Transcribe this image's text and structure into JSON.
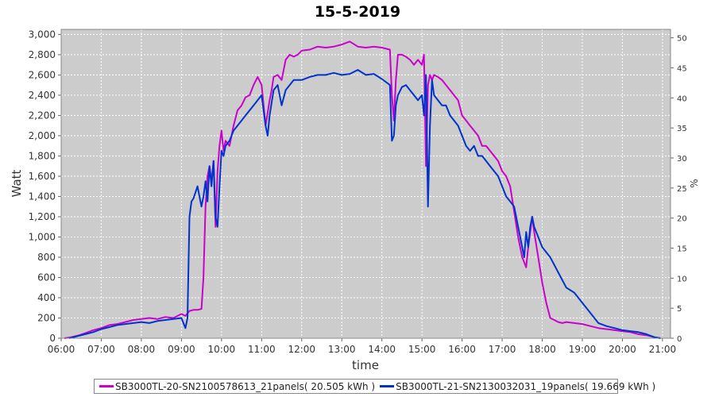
{
  "chart_data": {
    "type": "line",
    "title": "15-5-2019",
    "xlabel": "time",
    "ylabel": "Watt",
    "y2label": "%",
    "xlim": [
      6.0,
      21.2
    ],
    "ylim": [
      0,
      3050
    ],
    "y2lim": [
      0,
      51.4
    ],
    "x_ticks": [
      "06:00",
      "07:00",
      "08:00",
      "09:00",
      "10:00",
      "11:00",
      "12:00",
      "13:00",
      "14:00",
      "15:00",
      "16:00",
      "17:00",
      "18:00",
      "19:00",
      "20:00",
      "21:00"
    ],
    "y_ticks": [
      "0",
      "200",
      "400",
      "600",
      "800",
      "1,000",
      "1,200",
      "1,400",
      "1,600",
      "1,800",
      "2,000",
      "2,200",
      "2,400",
      "2,600",
      "2,800",
      "3,000"
    ],
    "y2_ticks": [
      "0",
      "5",
      "10",
      "15",
      "20",
      "25",
      "30",
      "35",
      "40",
      "45",
      "50"
    ],
    "grid": true,
    "legend_position": "bottom",
    "series": [
      {
        "name": "SB3000TL-20-SN2100578613_21panels( 20.505 kWh )",
        "color": "#cc00cc",
        "x": [
          6.08,
          6.25,
          6.45,
          6.6,
          6.8,
          7.0,
          7.2,
          7.4,
          7.6,
          7.8,
          8.0,
          8.2,
          8.4,
          8.6,
          8.8,
          9.0,
          9.1,
          9.2,
          9.3,
          9.4,
          9.5,
          9.55,
          9.6,
          9.65,
          9.7,
          9.75,
          9.8,
          9.85,
          9.9,
          9.95,
          10.0,
          10.05,
          10.1,
          10.2,
          10.3,
          10.4,
          10.5,
          10.6,
          10.7,
          10.8,
          10.9,
          11.0,
          11.1,
          11.2,
          11.25,
          11.3,
          11.4,
          11.5,
          11.6,
          11.7,
          11.8,
          11.9,
          12.0,
          12.2,
          12.4,
          12.6,
          12.8,
          13.0,
          13.2,
          13.4,
          13.6,
          13.8,
          14.0,
          14.2,
          14.25,
          14.3,
          14.35,
          14.4,
          14.5,
          14.6,
          14.7,
          14.8,
          14.9,
          15.0,
          15.05,
          15.1,
          15.15,
          15.2,
          15.25,
          15.3,
          15.4,
          15.5,
          15.6,
          15.7,
          15.8,
          15.9,
          16.0,
          16.1,
          16.2,
          16.3,
          16.4,
          16.5,
          16.6,
          16.7,
          16.8,
          16.9,
          17.0,
          17.1,
          17.2,
          17.3,
          17.4,
          17.5,
          17.55,
          17.6,
          17.65,
          17.7,
          17.75,
          17.8,
          17.9,
          18.0,
          18.1,
          18.2,
          18.3,
          18.4,
          18.5,
          18.6,
          18.8,
          19.0,
          19.2,
          19.4,
          19.6,
          19.8,
          20.0,
          20.2,
          20.4,
          20.6,
          20.8,
          20.95
        ],
        "y": [
          0,
          10,
          30,
          50,
          80,
          100,
          130,
          140,
          160,
          180,
          190,
          200,
          190,
          210,
          200,
          240,
          220,
          270,
          280,
          280,
          290,
          600,
          1300,
          1600,
          1700,
          1550,
          1750,
          1100,
          1650,
          1900,
          2050,
          1850,
          1950,
          1900,
          2100,
          2250,
          2300,
          2380,
          2400,
          2500,
          2580,
          2500,
          2100,
          2350,
          2450,
          2580,
          2600,
          2550,
          2750,
          2800,
          2780,
          2800,
          2840,
          2850,
          2880,
          2870,
          2880,
          2900,
          2930,
          2880,
          2870,
          2880,
          2870,
          2850,
          2400,
          2150,
          2550,
          2800,
          2800,
          2780,
          2750,
          2700,
          2750,
          2700,
          2800,
          1700,
          2500,
          2600,
          2550,
          2600,
          2580,
          2550,
          2500,
          2450,
          2400,
          2350,
          2200,
          2150,
          2100,
          2050,
          2000,
          1900,
          1900,
          1850,
          1800,
          1750,
          1650,
          1600,
          1500,
          1250,
          1000,
          800,
          750,
          700,
          900,
          1050,
          1200,
          1050,
          800,
          550,
          350,
          200,
          180,
          160,
          150,
          160,
          150,
          140,
          120,
          100,
          90,
          80,
          70,
          60,
          40,
          30,
          10,
          0
        ]
      },
      {
        "name": "SB3000TL-21-SN2130032031_19panels( 19.669 kWh )",
        "color": "#0033cc",
        "x": [
          6.2,
          6.4,
          6.6,
          6.8,
          7.0,
          7.2,
          7.4,
          7.6,
          7.8,
          8.0,
          8.2,
          8.4,
          8.6,
          8.8,
          9.0,
          9.1,
          9.15,
          9.2,
          9.25,
          9.3,
          9.4,
          9.5,
          9.55,
          9.6,
          9.65,
          9.7,
          9.75,
          9.8,
          9.85,
          9.9,
          9.95,
          10.0,
          10.05,
          10.1,
          10.2,
          10.3,
          10.4,
          10.5,
          10.6,
          10.7,
          10.8,
          10.9,
          11.0,
          11.1,
          11.15,
          11.2,
          11.3,
          11.4,
          11.5,
          11.6,
          11.8,
          12.0,
          12.2,
          12.4,
          12.6,
          12.8,
          13.0,
          13.2,
          13.4,
          13.6,
          13.8,
          14.0,
          14.2,
          14.25,
          14.3,
          14.35,
          14.4,
          14.5,
          14.6,
          14.7,
          14.8,
          14.9,
          15.0,
          15.05,
          15.1,
          15.15,
          15.2,
          15.25,
          15.3,
          15.4,
          15.5,
          15.6,
          15.7,
          15.8,
          15.9,
          16.0,
          16.1,
          16.2,
          16.3,
          16.4,
          16.5,
          16.6,
          16.7,
          16.8,
          16.9,
          17.0,
          17.1,
          17.2,
          17.3,
          17.4,
          17.5,
          17.55,
          17.6,
          17.65,
          17.7,
          17.75,
          17.8,
          17.9,
          18.0,
          18.2,
          18.4,
          18.6,
          18.8,
          19.0,
          19.2,
          19.4,
          19.6,
          19.8,
          20.0,
          20.2,
          20.4,
          20.6,
          20.8,
          20.95
        ],
        "y": [
          0,
          20,
          40,
          60,
          90,
          110,
          130,
          140,
          150,
          160,
          150,
          170,
          180,
          190,
          200,
          100,
          200,
          1200,
          1350,
          1380,
          1500,
          1300,
          1400,
          1550,
          1350,
          1700,
          1500,
          1750,
          1200,
          1100,
          1500,
          1850,
          1800,
          1900,
          1950,
          2050,
          2100,
          2150,
          2200,
          2250,
          2300,
          2350,
          2400,
          2100,
          2000,
          2200,
          2450,
          2500,
          2300,
          2450,
          2550,
          2550,
          2580,
          2600,
          2600,
          2620,
          2600,
          2610,
          2650,
          2600,
          2610,
          2560,
          2500,
          1950,
          2000,
          2300,
          2400,
          2480,
          2500,
          2450,
          2400,
          2350,
          2400,
          2200,
          2600,
          1300,
          2100,
          2550,
          2400,
          2350,
          2300,
          2300,
          2200,
          2150,
          2100,
          2000,
          1900,
          1850,
          1900,
          1800,
          1800,
          1750,
          1700,
          1650,
          1600,
          1500,
          1400,
          1350,
          1300,
          1100,
          900,
          800,
          1050,
          900,
          1100,
          1200,
          1100,
          1000,
          900,
          800,
          650,
          500,
          450,
          350,
          250,
          150,
          120,
          100,
          80,
          70,
          60,
          40,
          10,
          0
        ]
      }
    ]
  }
}
